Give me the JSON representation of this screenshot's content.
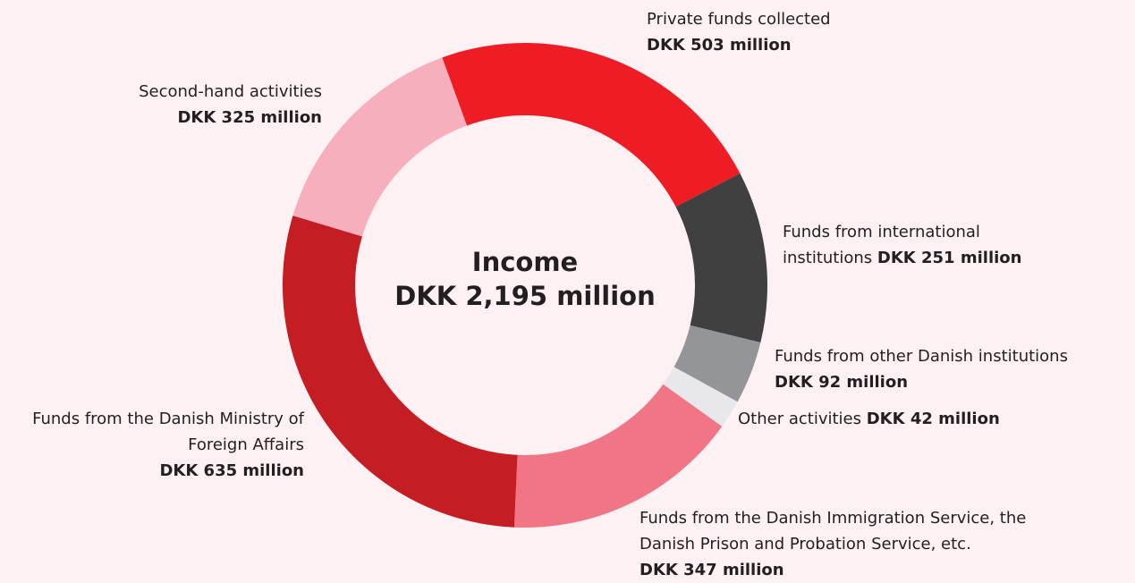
{
  "chart_data": {
    "type": "donut",
    "title": "Income",
    "total_label": "DKK 2,195 million",
    "categories": [
      "Private funds collected",
      "Funds from international institutions",
      "Funds from other Danish institutions",
      "Other activities",
      "Funds from the Danish Immigration Service, the Danish Prison and Probation Service, etc.",
      "Funds from the Danish Ministry of Foreign Affairs",
      "Second-hand activities"
    ],
    "values": [
      503,
      251,
      92,
      42,
      347,
      635,
      325
    ],
    "value_labels": [
      "DKK 503 million",
      "DKK 251 million",
      "DKK 92 million",
      "DKK 42 million",
      "DKK 347 million",
      "DKK 635 million",
      "DKK 325 million"
    ],
    "colors": [
      "#ee1c25",
      "#404040",
      "#939598",
      "#e8e8ea",
      "#f07585",
      "#c41e24",
      "#f7afbd"
    ]
  }
}
